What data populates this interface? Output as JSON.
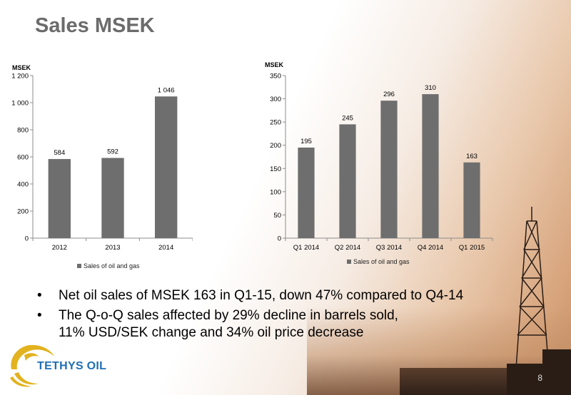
{
  "slide": {
    "title": "Sales MSEK",
    "page_number": "8"
  },
  "colors": {
    "bar": "#6e6e6e",
    "title": "#6b6b6b",
    "logo_blue": "#1f6fb5",
    "logo_gold": "#e2b21f"
  },
  "chart_data": [
    {
      "type": "bar",
      "unit_label": "MSEK",
      "categories": [
        "2012",
        "2013",
        "2014"
      ],
      "series": [
        {
          "name": "Sales of oil and gas",
          "values": [
            584,
            592,
            1046
          ],
          "value_labels": [
            "584",
            "592",
            "1 046"
          ]
        }
      ],
      "ylim": [
        0,
        1200
      ],
      "yticks": [
        0,
        200,
        400,
        600,
        800,
        1000,
        1200
      ],
      "ytick_labels": [
        "0",
        "200",
        "400",
        "600",
        "800",
        "1 000",
        "1 200"
      ],
      "legend_position": "bottom",
      "grid": false
    },
    {
      "type": "bar",
      "unit_label": "MSEK",
      "categories": [
        "Q1 2014",
        "Q2 2014",
        "Q3 2014",
        "Q4 2014",
        "Q1 2015"
      ],
      "series": [
        {
          "name": "Sales of oil and gas",
          "values": [
            195,
            245,
            296,
            310,
            163
          ],
          "value_labels": [
            "195",
            "245",
            "296",
            "310",
            "163"
          ]
        }
      ],
      "ylim": [
        0,
        350
      ],
      "yticks": [
        0,
        50,
        100,
        150,
        200,
        250,
        300,
        350
      ],
      "ytick_labels": [
        "0",
        "50",
        "100",
        "150",
        "200",
        "250",
        "300",
        "350"
      ],
      "legend_position": "bottom",
      "grid": false
    }
  ],
  "bullets": [
    {
      "lines": [
        "Net oil sales of MSEK 163 in Q1-15, down 47% compared to Q4-14"
      ]
    },
    {
      "lines": [
        "The Q-o-Q sales affected by 29% decline in barrels sold,",
        "11% USD/SEK change and 34% oil price decrease"
      ]
    }
  ],
  "bullet_glyph": "•",
  "logo": {
    "text": "TETHYS OIL"
  }
}
